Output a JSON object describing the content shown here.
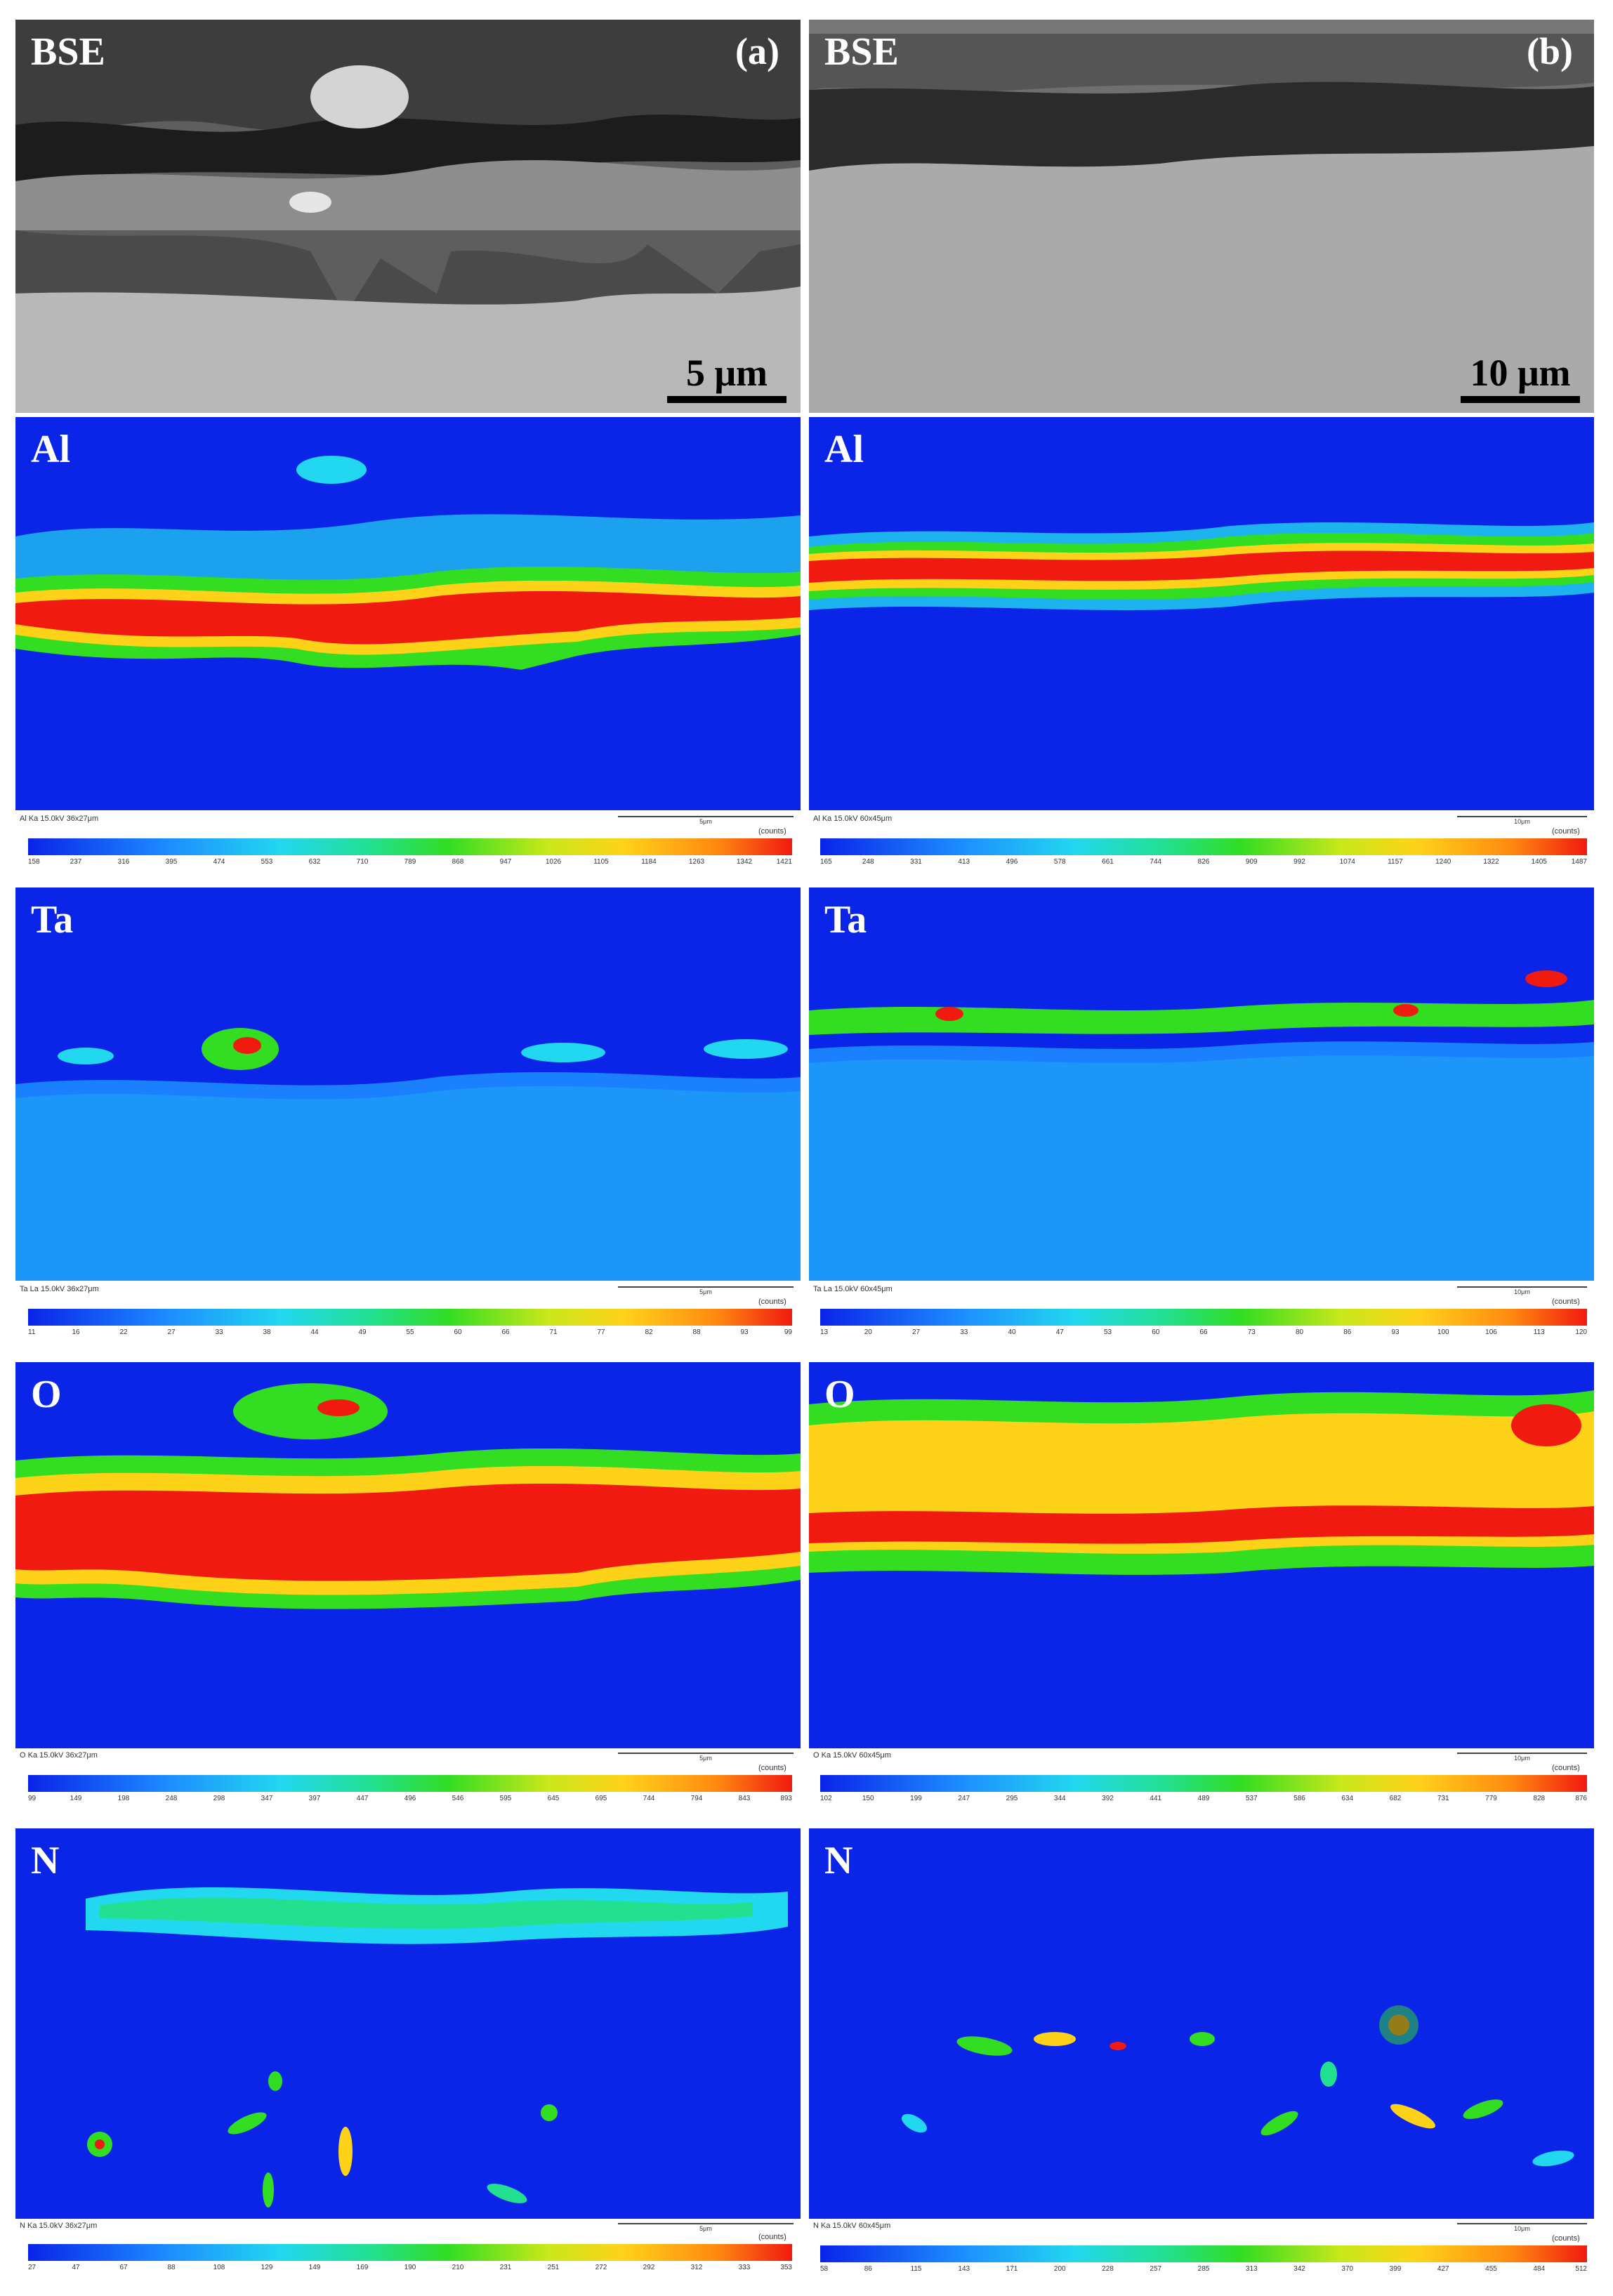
{
  "panels": {
    "a_bse_label": "BSE",
    "a_tag": "(a)",
    "a_scale": "5 μm",
    "b_bse_label": "BSE",
    "b_tag": "(b)",
    "b_scale": "10 μm",
    "elements": [
      "Al",
      "Ta",
      "O",
      "N"
    ]
  },
  "left_maps": [
    {
      "caption": "Al Ka 15.0kV  36x27μm",
      "um": "5μm",
      "counts": "(counts)",
      "ticks": [
        "158",
        "237",
        "316",
        "395",
        "474",
        "553",
        "632",
        "710",
        "789",
        "868",
        "947",
        "1026",
        "1105",
        "1184",
        "1263",
        "1342",
        "1421"
      ]
    },
    {
      "caption": "Ta La 15.0kV  36x27μm",
      "um": "5μm",
      "counts": "(counts)",
      "ticks": [
        "11",
        "16",
        "22",
        "27",
        "33",
        "38",
        "44",
        "49",
        "55",
        "60",
        "66",
        "71",
        "77",
        "82",
        "88",
        "93",
        "99"
      ]
    },
    {
      "caption": "O Ka 15.0kV  36x27μm",
      "um": "5μm",
      "counts": "(counts)",
      "ticks": [
        "99",
        "149",
        "198",
        "248",
        "298",
        "347",
        "397",
        "447",
        "496",
        "546",
        "595",
        "645",
        "695",
        "744",
        "794",
        "843",
        "893"
      ]
    },
    {
      "caption": "N Ka 15.0kV  36x27μm",
      "um": "5μm",
      "counts": "(counts)",
      "ticks": [
        "27",
        "47",
        "67",
        "88",
        "108",
        "129",
        "149",
        "169",
        "190",
        "210",
        "231",
        "251",
        "272",
        "292",
        "312",
        "333",
        "353"
      ]
    }
  ],
  "right_maps": [
    {
      "caption": "Al Ka 15.0kV  60x45μm",
      "um": "10μm",
      "counts": "(counts)",
      "ticks": [
        "165",
        "248",
        "331",
        "413",
        "496",
        "578",
        "661",
        "744",
        "826",
        "909",
        "992",
        "1074",
        "1157",
        "1240",
        "1322",
        "1405",
        "1487"
      ]
    },
    {
      "caption": "Ta La 15.0kV  60x45μm",
      "um": "10μm",
      "counts": "(counts)",
      "ticks": [
        "13",
        "20",
        "27",
        "33",
        "40",
        "47",
        "53",
        "60",
        "66",
        "73",
        "80",
        "86",
        "93",
        "100",
        "106",
        "113",
        "120"
      ]
    },
    {
      "caption": "O Ka 15.0kV  60x45μm",
      "um": "10μm",
      "counts": "(counts)",
      "ticks": [
        "102",
        "150",
        "199",
        "247",
        "295",
        "344",
        "392",
        "441",
        "489",
        "537",
        "586",
        "634",
        "682",
        "731",
        "779",
        "828",
        "876"
      ]
    },
    {
      "caption": "N Ka 15.0kV  60x45μm",
      "um": "10μm",
      "counts": "(counts)",
      "ticks": [
        "58",
        "86",
        "115",
        "143",
        "171",
        "200",
        "228",
        "257",
        "285",
        "313",
        "342",
        "370",
        "399",
        "427",
        "455",
        "484",
        "512"
      ]
    }
  ],
  "colors": {
    "map_bg": "#0a24e8",
    "hot": "#f01a10",
    "warm": "#ffd21a",
    "mid": "#32dd22",
    "cool": "#22d7f0"
  }
}
